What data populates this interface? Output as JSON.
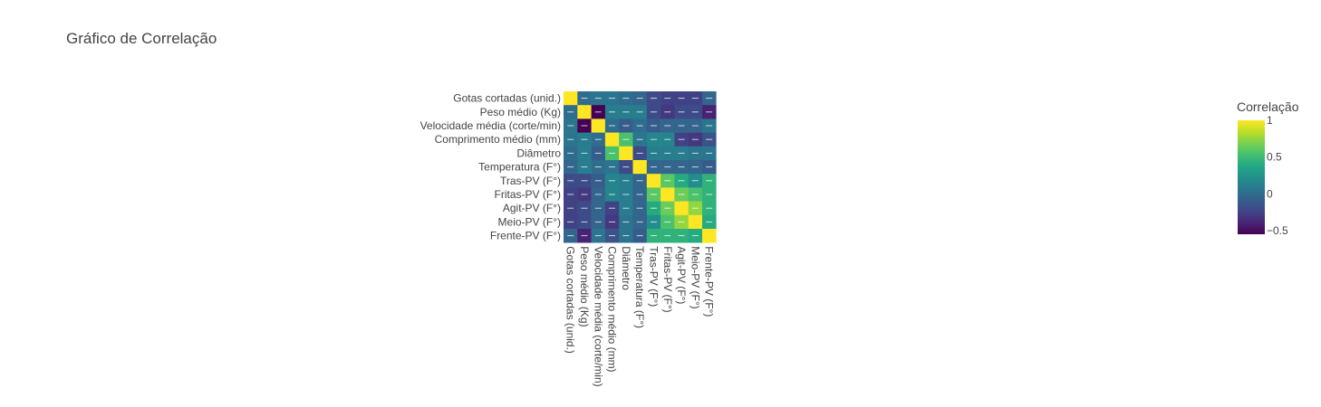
{
  "chart_data": {
    "type": "heatmap",
    "title": "Gráfico de Correlação",
    "xlabel": "",
    "ylabel": "",
    "variables": [
      "Gotas cortadas (unid.)",
      "Peso médio (Kg)",
      "Velocidade média (corte/min)",
      "Comprimento médio (mm)",
      "Diâmetro",
      "Temperatura (F°)",
      "Tras-PV (F°)",
      "Fritas-PV (F°)",
      "Agit-PV (F°)",
      "Meio-PV (F°)",
      "Frente-PV (F°)"
    ],
    "values": [
      [
        1.0,
        0.0,
        0.05,
        0.05,
        0.0,
        -0.05,
        -0.2,
        -0.25,
        -0.25,
        -0.25,
        -0.05
      ],
      [
        0.0,
        1.0,
        -0.55,
        0.1,
        0.1,
        0.1,
        -0.2,
        -0.3,
        -0.2,
        -0.2,
        -0.4
      ],
      [
        0.05,
        -0.55,
        1.0,
        0.0,
        -0.1,
        0.0,
        -0.1,
        -0.05,
        -0.05,
        -0.05,
        0.05
      ],
      [
        0.05,
        0.1,
        0.0,
        1.0,
        0.55,
        0.05,
        0.15,
        0.15,
        -0.25,
        -0.3,
        -0.15
      ],
      [
        0.0,
        0.1,
        -0.1,
        0.55,
        1.0,
        -0.2,
        0.1,
        0.1,
        0.1,
        0.05,
        0.05
      ],
      [
        -0.05,
        0.1,
        0.0,
        0.05,
        -0.2,
        1.0,
        -0.05,
        -0.05,
        -0.05,
        -0.05,
        -0.1
      ],
      [
        -0.2,
        -0.2,
        -0.1,
        0.15,
        0.1,
        -0.05,
        1.0,
        0.6,
        0.4,
        0.2,
        0.45
      ],
      [
        -0.25,
        -0.3,
        -0.05,
        0.15,
        0.1,
        -0.05,
        0.6,
        1.0,
        0.65,
        0.55,
        0.45
      ],
      [
        -0.25,
        -0.2,
        -0.05,
        -0.25,
        0.1,
        -0.05,
        0.4,
        0.65,
        1.0,
        0.75,
        0.45
      ],
      [
        -0.25,
        -0.2,
        -0.05,
        -0.3,
        0.05,
        -0.05,
        0.2,
        0.55,
        0.75,
        1.0,
        0.4
      ],
      [
        -0.05,
        -0.4,
        0.05,
        -0.15,
        0.05,
        -0.1,
        0.45,
        0.45,
        0.45,
        0.4,
        1.0
      ]
    ],
    "colorscale": "Viridis",
    "zmin": -0.55,
    "zmax": 1.0,
    "colorbar": {
      "title": "Correlação",
      "ticks": [
        1,
        0.5,
        0,
        -0.5
      ],
      "tick_labels": [
        "1",
        "0.5",
        "0",
        "−0.5"
      ]
    },
    "x_tick_orientation": "rotated 90°"
  }
}
